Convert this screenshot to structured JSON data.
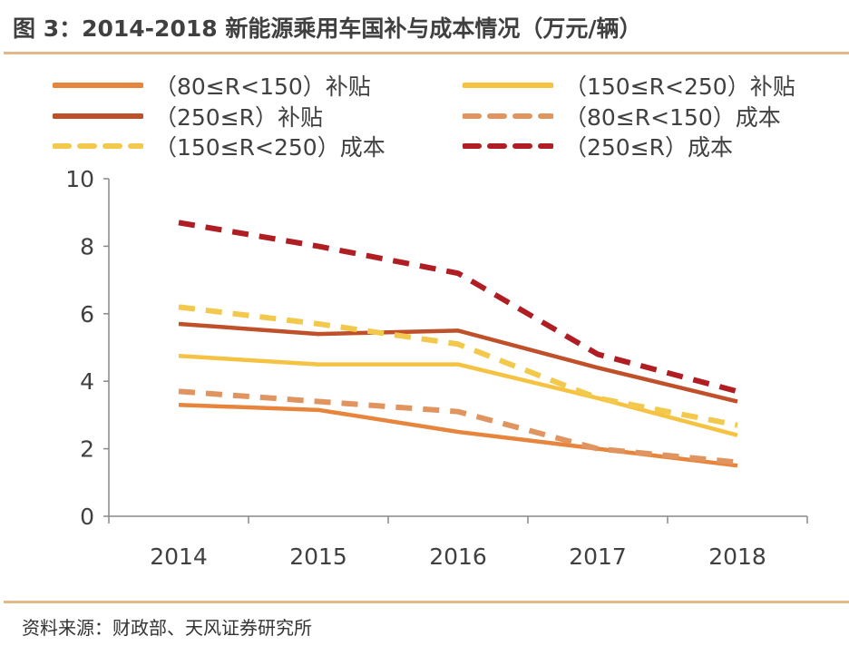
{
  "title": "图 3：2014-2018 新能源乘用车国补与成本情况（万元/辆）",
  "source": "资料来源：财政部、天风证券研究所",
  "chart_data": {
    "type": "line",
    "title": "图 3：2014-2018 新能源乘用车国补与成本情况（万元/辆）",
    "xlabel": "",
    "ylabel": "",
    "categories": [
      "2014",
      "2015",
      "2016",
      "2017",
      "2018"
    ],
    "ylim": [
      0,
      10
    ],
    "yticks": [
      "0",
      "2",
      "4",
      "6",
      "8",
      "10"
    ],
    "grid": false,
    "legend_placement": "top",
    "series": [
      {
        "name": "（80≤R<150）补贴",
        "values": [
          3.3,
          3.15,
          2.5,
          2.0,
          1.5
        ],
        "color": "#E8853D",
        "dash": false
      },
      {
        "name": "（150≤R<250）补贴",
        "values": [
          4.75,
          4.5,
          4.5,
          3.5,
          2.4
        ],
        "color": "#F5C242",
        "dash": false
      },
      {
        "name": "（250≤R）补贴",
        "values": [
          5.7,
          5.4,
          5.5,
          4.4,
          3.4
        ],
        "color": "#C0502A",
        "dash": false
      },
      {
        "name": "（80≤R<150）成本",
        "values": [
          3.7,
          3.4,
          3.1,
          2.0,
          1.6
        ],
        "color": "#E09460",
        "dash": true
      },
      {
        "name": "（150≤R<250）成本",
        "values": [
          6.2,
          5.7,
          5.1,
          3.5,
          2.7
        ],
        "color": "#F2C94C",
        "dash": true
      },
      {
        "name": "（250≤R）成本",
        "values": [
          8.7,
          8.0,
          7.2,
          4.8,
          3.7
        ],
        "color": "#B01E23",
        "dash": true
      }
    ]
  }
}
